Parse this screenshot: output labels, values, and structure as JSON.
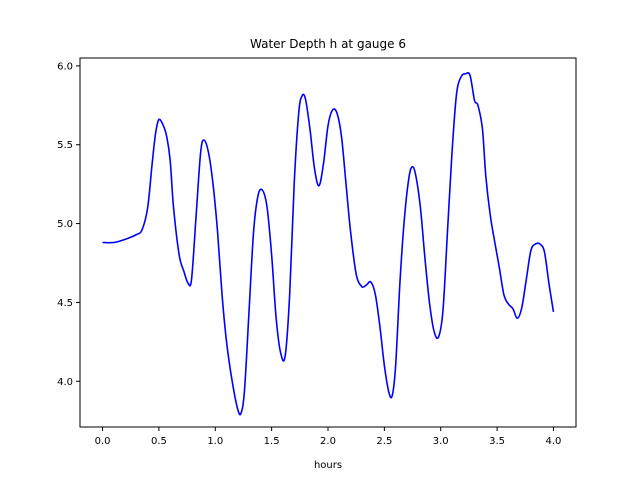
{
  "chart_data": {
    "type": "line",
    "title": "Water Depth h at gauge 6",
    "xlabel": "hours",
    "ylabel": "",
    "xlim": [
      -0.2,
      4.2
    ],
    "ylim": [
      3.71,
      6.05
    ],
    "xticks": [
      0.0,
      0.5,
      1.0,
      1.5,
      2.0,
      2.5,
      3.0,
      3.5,
      4.0
    ],
    "xtick_labels": [
      "0.0",
      "0.5",
      "1.0",
      "1.5",
      "2.0",
      "2.5",
      "3.0",
      "3.5",
      "4.0"
    ],
    "yticks": [
      4.0,
      4.5,
      5.0,
      5.5,
      6.0
    ],
    "ytick_labels": [
      "4.0",
      "4.5",
      "5.0",
      "5.5",
      "6.0"
    ],
    "grid": false,
    "color": "#0000ff",
    "series": [
      {
        "name": "",
        "x": [
          0.0,
          0.1,
          0.2,
          0.3,
          0.35,
          0.4,
          0.44,
          0.47,
          0.5,
          0.54,
          0.57,
          0.6,
          0.63,
          0.68,
          0.72,
          0.76,
          0.79,
          0.83,
          0.87,
          0.9,
          0.94,
          0.98,
          1.02,
          1.06,
          1.1,
          1.15,
          1.2,
          1.23,
          1.26,
          1.3,
          1.34,
          1.38,
          1.42,
          1.46,
          1.5,
          1.54,
          1.58,
          1.62,
          1.66,
          1.7,
          1.74,
          1.77,
          1.8,
          1.84,
          1.88,
          1.92,
          1.96,
          2.0,
          2.04,
          2.08,
          2.12,
          2.16,
          2.2,
          2.25,
          2.3,
          2.34,
          2.38,
          2.42,
          2.46,
          2.5,
          2.54,
          2.57,
          2.6,
          2.64,
          2.68,
          2.72,
          2.75,
          2.78,
          2.82,
          2.86,
          2.9,
          2.94,
          2.98,
          3.02,
          3.06,
          3.1,
          3.14,
          3.18,
          3.22,
          3.26,
          3.3,
          3.33,
          3.37,
          3.4,
          3.44,
          3.48,
          3.52,
          3.56,
          3.6,
          3.64,
          3.68,
          3.72,
          3.76,
          3.8,
          3.84,
          3.88,
          3.92,
          3.96,
          4.0
        ],
        "values": [
          4.88,
          4.88,
          4.9,
          4.93,
          4.96,
          5.1,
          5.38,
          5.57,
          5.66,
          5.62,
          5.55,
          5.4,
          5.1,
          4.8,
          4.7,
          4.62,
          4.65,
          5.05,
          5.45,
          5.53,
          5.45,
          5.25,
          4.95,
          4.55,
          4.25,
          4.0,
          3.82,
          3.8,
          3.95,
          4.45,
          4.95,
          5.18,
          5.21,
          5.1,
          4.8,
          4.4,
          4.18,
          4.16,
          4.55,
          5.25,
          5.7,
          5.81,
          5.79,
          5.6,
          5.35,
          5.24,
          5.38,
          5.62,
          5.72,
          5.7,
          5.55,
          5.25,
          4.95,
          4.68,
          4.6,
          4.61,
          4.63,
          4.55,
          4.35,
          4.1,
          3.93,
          3.91,
          4.1,
          4.65,
          5.05,
          5.3,
          5.36,
          5.3,
          5.1,
          4.78,
          4.5,
          4.32,
          4.28,
          4.45,
          4.95,
          5.45,
          5.82,
          5.93,
          5.95,
          5.94,
          5.78,
          5.75,
          5.6,
          5.3,
          5.05,
          4.88,
          4.72,
          4.55,
          4.49,
          4.46,
          4.4,
          4.47,
          4.65,
          4.83,
          4.87,
          4.87,
          4.82,
          4.62,
          4.44
        ]
      }
    ]
  }
}
